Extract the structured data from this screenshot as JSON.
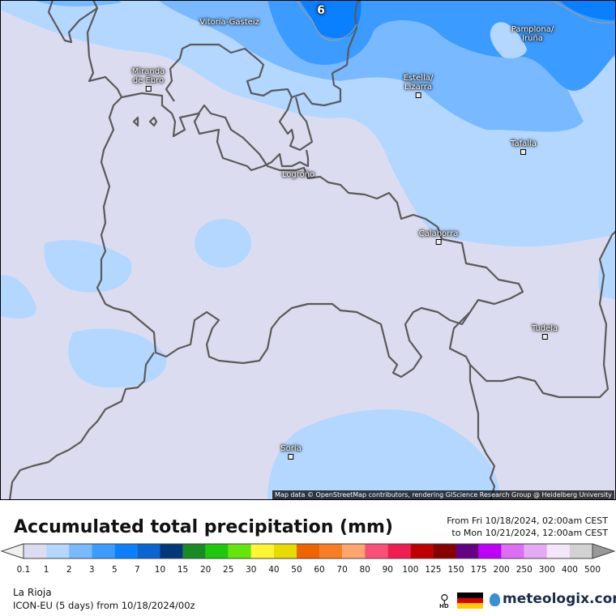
{
  "map": {
    "contour_label": "6",
    "cities": [
      {
        "name": "Vitoria-Gasteiz",
        "marker": false
      },
      {
        "name": "Pamplona/\nIruña",
        "marker": false
      },
      {
        "name": "Miranda\nde Ebro",
        "marker": true
      },
      {
        "name": "Estella/\nLizarra",
        "marker": true
      },
      {
        "name": "Tafalla",
        "marker": true
      },
      {
        "name": "Logroño",
        "marker": false
      },
      {
        "name": "Calahorra",
        "marker": true
      },
      {
        "name": "Tudela",
        "marker": true
      },
      {
        "name": "Soria",
        "marker": true
      }
    ],
    "attribution": "Map data © OpenStreetMap contributors, rendering GIScience Research Group @ Heidelberg University"
  },
  "header": {
    "title": "Accumulated total precipitation (mm)",
    "from": "From Fri 10/18/2024, 02:00am CEST",
    "to": "to Mon 10/21/2024, 12:00am CEST"
  },
  "legend": {
    "ticks": [
      "0.1",
      "1",
      "2",
      "3",
      "5",
      "7",
      "10",
      "15",
      "20",
      "25",
      "30",
      "40",
      "50",
      "60",
      "70",
      "80",
      "90",
      "100",
      "125",
      "150",
      "175",
      "200",
      "250",
      "300",
      "400",
      "500"
    ],
    "colors": [
      "#dcdcf0",
      "#b4d7ff",
      "#78b9ff",
      "#3c9bff",
      "#0a80ff",
      "#0a64d2",
      "#00387a",
      "#168c22",
      "#1ec80a",
      "#64e60a",
      "#fff532",
      "#e6dc00",
      "#f06400",
      "#fa7d23",
      "#ffa56e",
      "#fa5078",
      "#f01e50",
      "#be0000",
      "#870000",
      "#640082",
      "#be00fa",
      "#dc6ef5",
      "#e6aaf5",
      "#f5e6fa",
      "#d2d2d2"
    ],
    "under_color": "#f0f0f0",
    "over_color": "#999999"
  },
  "footer": {
    "region": "La Rioja",
    "model": "ICON-EU (5 days) from  10/18/2024/00z",
    "hd_label": "HD",
    "brand": "meteologix.com"
  }
}
